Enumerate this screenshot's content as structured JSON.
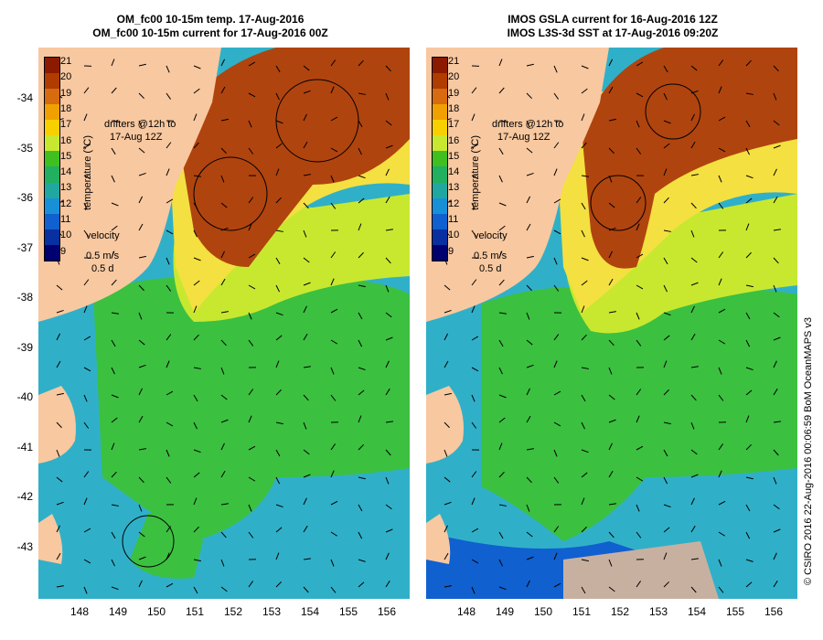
{
  "panels": [
    {
      "title_line1": "OM_fc00 10-15m temp. 17-Aug-2016",
      "title_line2": "OM_fc00 10-15m current for 17-Aug-2016 00Z",
      "drifters_line1": "drifters @12h to",
      "drifters_line2": "17-Aug 12Z",
      "velocity_label": "velocity",
      "velocity_speed": "0.5 m/s",
      "velocity_time": "0.5 d"
    },
    {
      "title_line1": "IMOS GSLA current for 16-Aug-2016 12Z",
      "title_line2": "IMOS L3S-3d SST at 17-Aug-2016 09:20Z",
      "drifters_line1": "drifters @12h to",
      "drifters_line2": "17-Aug 12Z",
      "velocity_label": "velocity",
      "velocity_speed": "0.5 m/s",
      "velocity_time": "0.5 d"
    }
  ],
  "colorbar": {
    "title": "temperature (°C)",
    "ticks": [
      "21",
      "20",
      "19",
      "18",
      "17",
      "16",
      "15",
      "14",
      "13",
      "12",
      "11",
      "10",
      "9"
    ],
    "colors": [
      "#8b1a00",
      "#b03c00",
      "#d86a10",
      "#f0a000",
      "#f8d000",
      "#c8e830",
      "#40c020",
      "#20b060",
      "#20a8a0",
      "#1890d8",
      "#1060d0",
      "#0830a0",
      "#000070"
    ]
  },
  "axes": {
    "y_ticks": [
      "-34",
      "-35",
      "-36",
      "-37",
      "-38",
      "-39",
      "-40",
      "-41",
      "-42",
      "-43"
    ],
    "x_ticks": [
      "148",
      "149",
      "150",
      "151",
      "152",
      "153",
      "154",
      "155",
      "156"
    ]
  },
  "credit": "© CSIRO 2016   22-Aug-2016 00:06:59 BoM OceanMAPS v3",
  "colors": {
    "land": "#f8c8a0",
    "warm": "#b0440e",
    "yellow": "#f4e040",
    "green": "#3cc040",
    "cool": "#30b0c8",
    "missing": "#c8b0a0"
  }
}
